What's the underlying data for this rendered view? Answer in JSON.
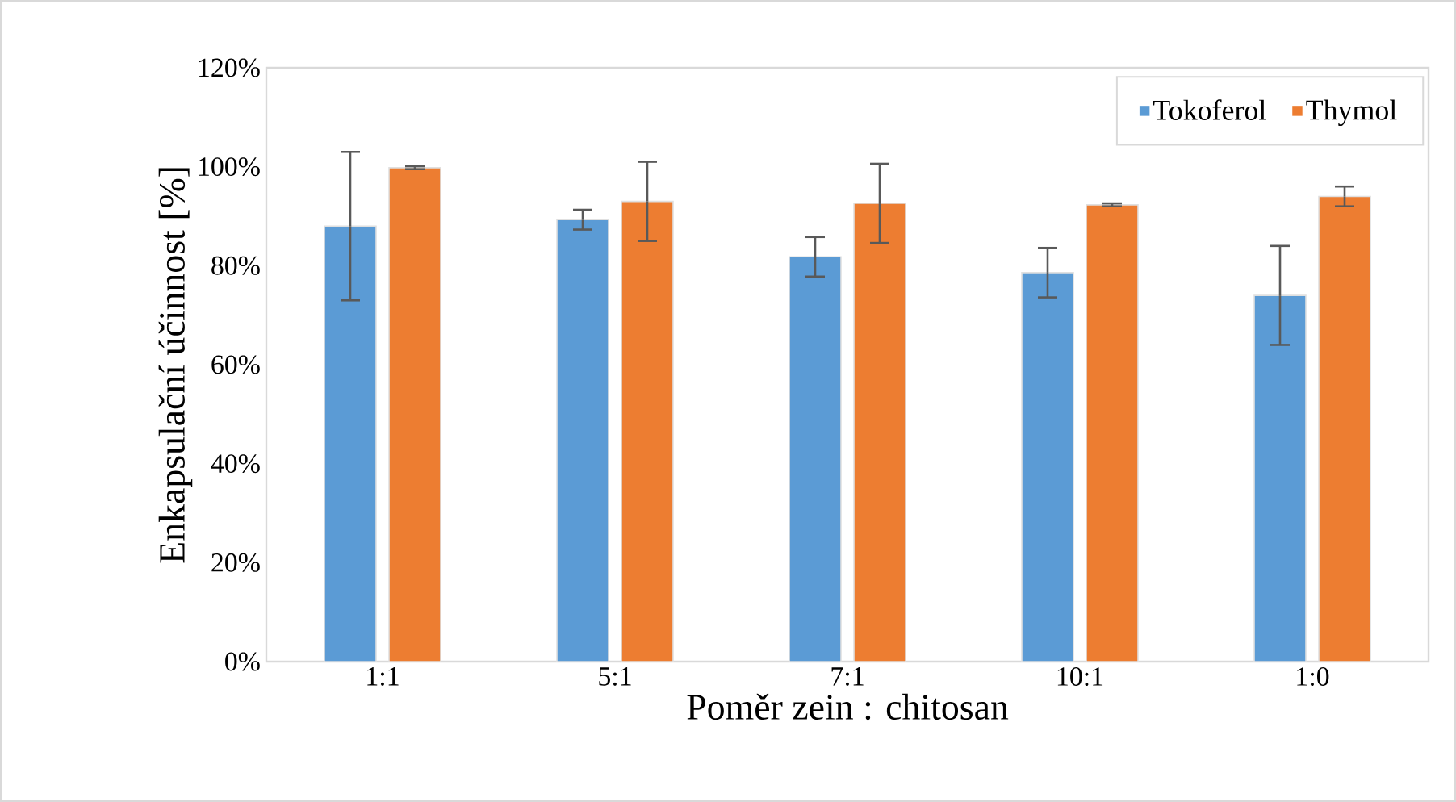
{
  "chart_data": {
    "type": "bar",
    "xlabel": "Poměr zein : chitosan",
    "ylabel": "Enkapsulační účinnost [%]",
    "categories": [
      "1:1",
      "5:1",
      "7:1",
      "10:1",
      "1:0"
    ],
    "series": [
      {
        "name": "Tokoferol",
        "color": "#5b9bd5",
        "values": [
          88,
          89.3,
          81.8,
          78.6,
          74
        ],
        "errors": [
          15,
          2,
          4,
          5,
          10
        ]
      },
      {
        "name": "Thymol",
        "color": "#ed7d31",
        "values": [
          99.8,
          93,
          92.6,
          92.3,
          94
        ],
        "errors": [
          0.3,
          8,
          8,
          0.3,
          2
        ]
      }
    ],
    "ylim": [
      0,
      120
    ],
    "yticks": [
      {
        "value": 0,
        "label": "0%"
      },
      {
        "value": 20,
        "label": "20%"
      },
      {
        "value": 40,
        "label": "40%"
      },
      {
        "value": 60,
        "label": "60%"
      },
      {
        "value": 80,
        "label": "80%"
      },
      {
        "value": 100,
        "label": "100%"
      },
      {
        "value": 120,
        "label": "120%"
      }
    ],
    "legend": "top right"
  }
}
